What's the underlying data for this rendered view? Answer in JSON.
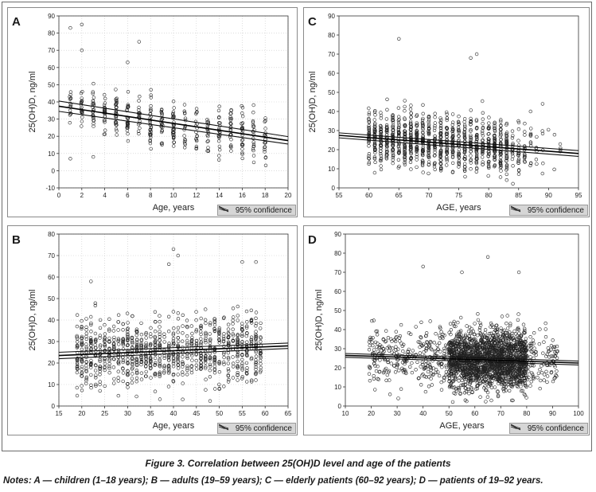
{
  "figure": {
    "caption": "Figure 3. Correlation between 25(OH)D level and age of the patients",
    "notes": "Notes: A — children (1–18 years); B — adults (19–59 years); C — elderly patients (60–92 years); D — patients of 19–92 years."
  },
  "confidence_label": "95% confidence",
  "chart_data": [
    {
      "id": "A",
      "type": "scatter",
      "letter": "A",
      "xlabel": "Age, years",
      "ylabel": "25(OH)D, ng/ml",
      "xlim": [
        0,
        20
      ],
      "ylim": [
        -10,
        90
      ],
      "xticks": [
        0,
        2,
        4,
        6,
        8,
        10,
        12,
        14,
        16,
        18,
        20
      ],
      "yticks": [
        -10,
        0,
        10,
        20,
        30,
        40,
        50,
        60,
        70,
        80,
        90
      ],
      "grid": true,
      "regression": {
        "x": [
          0,
          20
        ],
        "y": [
          37.5,
          17.5
        ]
      },
      "confidence_band": {
        "lower": [
          34.5,
          15.5
        ],
        "upper": [
          40.5,
          19.8
        ]
      },
      "x_generator": {
        "mode": "discrete",
        "values": [
          1,
          2,
          3,
          4,
          5,
          6,
          7,
          8,
          9,
          10,
          11,
          12,
          13,
          14,
          15,
          16,
          17,
          18
        ],
        "count": 420
      },
      "residual_sd": 11,
      "y_range": [
        2,
        85
      ],
      "outliers": [
        [
          1,
          83
        ],
        [
          2,
          85
        ],
        [
          2,
          70
        ],
        [
          7,
          75
        ],
        [
          6,
          63
        ],
        [
          1,
          7
        ],
        [
          3,
          8
        ]
      ]
    },
    {
      "id": "B",
      "type": "scatter",
      "letter": "B",
      "xlabel": "Age, years",
      "ylabel": "25(OH)D, ng/ml",
      "xlim": [
        15,
        65
      ],
      "ylim": [
        0,
        80
      ],
      "xticks": [
        15,
        20,
        25,
        30,
        35,
        40,
        45,
        50,
        55,
        60,
        65
      ],
      "yticks": [
        0,
        10,
        20,
        30,
        40,
        50,
        60,
        70,
        80
      ],
      "grid": true,
      "regression": {
        "x": [
          15,
          65
        ],
        "y": [
          23.5,
          28
        ]
      },
      "confidence_band": {
        "lower": [
          22,
          26.8
        ],
        "upper": [
          25,
          29.3
        ]
      },
      "x_generator": {
        "mode": "discrete",
        "values": [
          19,
          20,
          21,
          22,
          23,
          24,
          25,
          26,
          27,
          28,
          29,
          30,
          31,
          32,
          33,
          34,
          35,
          36,
          37,
          38,
          39,
          40,
          41,
          42,
          43,
          44,
          45,
          46,
          47,
          48,
          49,
          50,
          51,
          52,
          53,
          54,
          55,
          56,
          57,
          58,
          59
        ],
        "count": 950
      },
      "residual_sd": 12,
      "y_range": [
        2,
        73
      ],
      "outliers": [
        [
          40,
          73
        ],
        [
          41,
          70
        ],
        [
          39,
          66
        ],
        [
          55,
          67
        ],
        [
          58,
          67
        ],
        [
          22,
          58
        ]
      ]
    },
    {
      "id": "C",
      "type": "scatter",
      "letter": "C",
      "xlabel": "AGE, years",
      "ylabel": "25(OH)D, ng/ml",
      "xlim": [
        55,
        95
      ],
      "ylim": [
        0,
        90
      ],
      "xticks": [
        55,
        60,
        65,
        70,
        75,
        80,
        85,
        90,
        95
      ],
      "yticks": [
        0,
        10,
        20,
        30,
        40,
        50,
        60,
        70,
        80,
        90
      ],
      "grid": false,
      "regression": {
        "x": [
          55,
          95
        ],
        "y": [
          27.5,
          18
        ]
      },
      "confidence_band": {
        "lower": [
          26.2,
          16.5
        ],
        "upper": [
          28.8,
          19.5
        ]
      },
      "x_generator": {
        "mode": "discrete",
        "values": [
          60,
          61,
          62,
          63,
          64,
          65,
          66,
          67,
          68,
          69,
          70,
          71,
          72,
          73,
          74,
          75,
          76,
          77,
          78,
          79,
          80,
          81,
          82,
          83,
          84,
          85,
          86,
          87,
          88,
          89,
          90,
          91,
          92
        ],
        "weights_decay_after": 80,
        "count": 1050
      },
      "residual_sd": 11,
      "y_range": [
        2,
        78
      ],
      "outliers": [
        [
          65,
          78
        ],
        [
          77,
          68
        ],
        [
          78,
          70
        ],
        [
          87,
          40
        ],
        [
          89,
          44
        ],
        [
          92,
          20
        ]
      ]
    },
    {
      "id": "D",
      "type": "scatter",
      "letter": "D",
      "xlabel": "AGE, years",
      "ylabel": "25(OH)D, ng/ml",
      "xlim": [
        10,
        100
      ],
      "ylim": [
        0,
        90
      ],
      "xticks": [
        10,
        20,
        30,
        40,
        50,
        60,
        70,
        80,
        90,
        100
      ],
      "yticks": [
        0,
        10,
        20,
        30,
        40,
        50,
        60,
        70,
        80,
        90
      ],
      "grid": false,
      "regression": {
        "x": [
          10,
          100
        ],
        "y": [
          26.5,
          22.5
        ]
      },
      "confidence_band": {
        "lower": [
          25.5,
          21.5
        ],
        "upper": [
          27.5,
          23.5
        ]
      },
      "x_generator": {
        "mode": "continuous",
        "range": [
          19,
          92
        ],
        "peak": [
          50,
          80
        ],
        "count": 2300
      },
      "residual_sd": 12,
      "y_range": [
        2,
        78
      ],
      "outliers": [
        [
          65,
          78
        ],
        [
          40,
          73
        ],
        [
          77,
          70
        ],
        [
          55,
          70
        ]
      ]
    }
  ]
}
